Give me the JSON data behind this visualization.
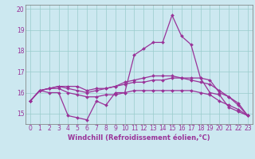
{
  "xlabel": "Windchill (Refroidissement éolien,°C)",
  "background_color": "#cce8f0",
  "grid_color": "#99cccc",
  "line_color": "#993399",
  "x": [
    0,
    1,
    2,
    3,
    4,
    5,
    6,
    7,
    8,
    9,
    10,
    11,
    12,
    13,
    14,
    15,
    16,
    17,
    18,
    19,
    20,
    21,
    22,
    23
  ],
  "series1": [
    15.6,
    16.1,
    16.0,
    16.0,
    14.9,
    14.8,
    14.7,
    15.6,
    15.4,
    16.0,
    16.0,
    17.8,
    18.1,
    18.4,
    18.4,
    19.7,
    18.7,
    18.3,
    16.7,
    16.0,
    15.9,
    15.3,
    15.1,
    14.9
  ],
  "series2": [
    15.6,
    16.1,
    16.2,
    16.3,
    16.3,
    16.3,
    16.1,
    16.2,
    16.2,
    16.3,
    16.4,
    16.5,
    16.5,
    16.6,
    16.6,
    16.7,
    16.7,
    16.7,
    16.7,
    16.6,
    16.0,
    15.8,
    15.4,
    14.9
  ],
  "series3": [
    15.6,
    16.1,
    16.2,
    16.3,
    16.2,
    16.1,
    16.0,
    16.1,
    16.2,
    16.3,
    16.5,
    16.6,
    16.7,
    16.8,
    16.8,
    16.8,
    16.7,
    16.6,
    16.5,
    16.4,
    16.1,
    15.8,
    15.5,
    14.9
  ],
  "series4": [
    15.6,
    16.1,
    16.2,
    16.2,
    16.0,
    15.9,
    15.8,
    15.8,
    15.9,
    15.9,
    16.0,
    16.1,
    16.1,
    16.1,
    16.1,
    16.1,
    16.1,
    16.1,
    16.0,
    15.9,
    15.6,
    15.4,
    15.2,
    14.9
  ],
  "ylim": [
    14.5,
    20.2
  ],
  "yticks": [
    15,
    16,
    17,
    18,
    19,
    20
  ],
  "marker": "D",
  "markersize": 2.0,
  "linewidth": 0.9,
  "tick_fontsize": 5.5,
  "xlabel_fontsize": 6.0
}
